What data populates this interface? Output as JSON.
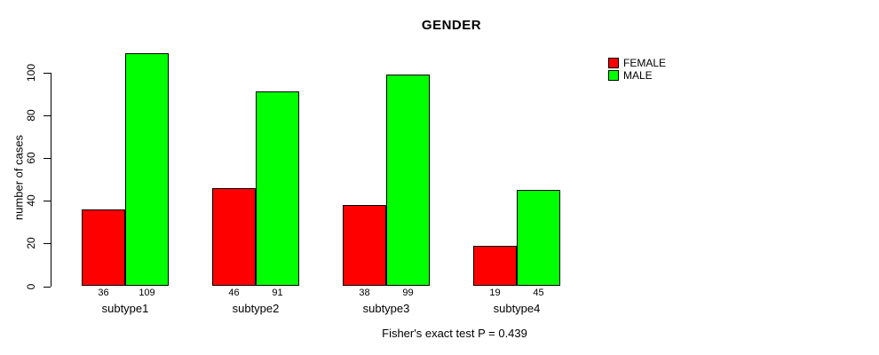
{
  "chart_data": {
    "type": "bar",
    "title": "GENDER",
    "ylabel": "number of cases",
    "xlabel": "",
    "categories": [
      "subtype1",
      "subtype2",
      "subtype3",
      "subtype4"
    ],
    "series": [
      {
        "name": "FEMALE",
        "color": "#FF0000",
        "values": [
          36,
          46,
          38,
          19
        ]
      },
      {
        "name": "MALE",
        "color": "#00FF00",
        "values": [
          109,
          91,
          99,
          45
        ]
      }
    ],
    "ylim": [
      0,
      110
    ],
    "yticks": [
      0,
      20,
      40,
      60,
      80,
      100
    ],
    "bar_value_labels": [
      [
        36,
        109
      ],
      [
        46,
        91
      ],
      [
        38,
        99
      ],
      [
        19,
        45
      ]
    ],
    "grid": false,
    "legend_position": "top-right",
    "annotation": "Fisher's exact test P = 0.439",
    "background_color": "#FFFFFF",
    "axis_color": "#000000",
    "bar_border_color": "#000000",
    "text_color": "#000000"
  }
}
